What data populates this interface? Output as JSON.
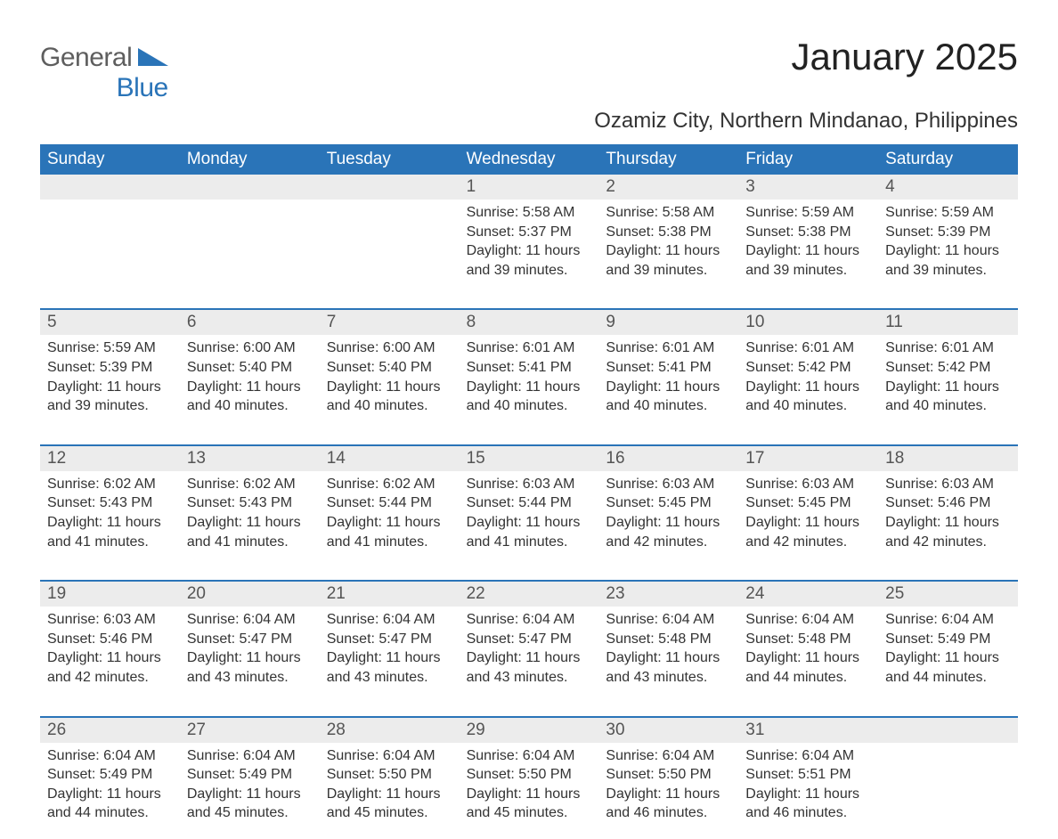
{
  "logo": {
    "top": "General",
    "bottom": "Blue",
    "mark_color": "#2a74b8",
    "text_gray": "#5e5e5e"
  },
  "title": "January 2025",
  "location": "Ozamiz City, Northern Mindanao, Philippines",
  "colors": {
    "header_bg": "#2a74b8",
    "header_text": "#ffffff",
    "daynum_bg": "#ececec",
    "body_text": "#333333",
    "background": "#ffffff",
    "week_border": "#2a74b8"
  },
  "typography": {
    "title_fontsize": 42,
    "location_fontsize": 24,
    "weekday_fontsize": 19,
    "daynum_fontsize": 19,
    "body_fontsize": 16
  },
  "layout": {
    "columns": 7,
    "rows": 5
  },
  "weekdays": [
    "Sunday",
    "Monday",
    "Tuesday",
    "Wednesday",
    "Thursday",
    "Friday",
    "Saturday"
  ],
  "weeks": [
    {
      "nums": [
        "",
        "",
        "",
        "1",
        "2",
        "3",
        "4"
      ],
      "cells": [
        {
          "sunrise": "",
          "sunset": "",
          "daylight": ""
        },
        {
          "sunrise": "",
          "sunset": "",
          "daylight": ""
        },
        {
          "sunrise": "",
          "sunset": "",
          "daylight": ""
        },
        {
          "sunrise": "Sunrise: 5:58 AM",
          "sunset": "Sunset: 5:37 PM",
          "daylight": "Daylight: 11 hours and 39 minutes."
        },
        {
          "sunrise": "Sunrise: 5:58 AM",
          "sunset": "Sunset: 5:38 PM",
          "daylight": "Daylight: 11 hours and 39 minutes."
        },
        {
          "sunrise": "Sunrise: 5:59 AM",
          "sunset": "Sunset: 5:38 PM",
          "daylight": "Daylight: 11 hours and 39 minutes."
        },
        {
          "sunrise": "Sunrise: 5:59 AM",
          "sunset": "Sunset: 5:39 PM",
          "daylight": "Daylight: 11 hours and 39 minutes."
        }
      ]
    },
    {
      "nums": [
        "5",
        "6",
        "7",
        "8",
        "9",
        "10",
        "11"
      ],
      "cells": [
        {
          "sunrise": "Sunrise: 5:59 AM",
          "sunset": "Sunset: 5:39 PM",
          "daylight": "Daylight: 11 hours and 39 minutes."
        },
        {
          "sunrise": "Sunrise: 6:00 AM",
          "sunset": "Sunset: 5:40 PM",
          "daylight": "Daylight: 11 hours and 40 minutes."
        },
        {
          "sunrise": "Sunrise: 6:00 AM",
          "sunset": "Sunset: 5:40 PM",
          "daylight": "Daylight: 11 hours and 40 minutes."
        },
        {
          "sunrise": "Sunrise: 6:01 AM",
          "sunset": "Sunset: 5:41 PM",
          "daylight": "Daylight: 11 hours and 40 minutes."
        },
        {
          "sunrise": "Sunrise: 6:01 AM",
          "sunset": "Sunset: 5:41 PM",
          "daylight": "Daylight: 11 hours and 40 minutes."
        },
        {
          "sunrise": "Sunrise: 6:01 AM",
          "sunset": "Sunset: 5:42 PM",
          "daylight": "Daylight: 11 hours and 40 minutes."
        },
        {
          "sunrise": "Sunrise: 6:01 AM",
          "sunset": "Sunset: 5:42 PM",
          "daylight": "Daylight: 11 hours and 40 minutes."
        }
      ]
    },
    {
      "nums": [
        "12",
        "13",
        "14",
        "15",
        "16",
        "17",
        "18"
      ],
      "cells": [
        {
          "sunrise": "Sunrise: 6:02 AM",
          "sunset": "Sunset: 5:43 PM",
          "daylight": "Daylight: 11 hours and 41 minutes."
        },
        {
          "sunrise": "Sunrise: 6:02 AM",
          "sunset": "Sunset: 5:43 PM",
          "daylight": "Daylight: 11 hours and 41 minutes."
        },
        {
          "sunrise": "Sunrise: 6:02 AM",
          "sunset": "Sunset: 5:44 PM",
          "daylight": "Daylight: 11 hours and 41 minutes."
        },
        {
          "sunrise": "Sunrise: 6:03 AM",
          "sunset": "Sunset: 5:44 PM",
          "daylight": "Daylight: 11 hours and 41 minutes."
        },
        {
          "sunrise": "Sunrise: 6:03 AM",
          "sunset": "Sunset: 5:45 PM",
          "daylight": "Daylight: 11 hours and 42 minutes."
        },
        {
          "sunrise": "Sunrise: 6:03 AM",
          "sunset": "Sunset: 5:45 PM",
          "daylight": "Daylight: 11 hours and 42 minutes."
        },
        {
          "sunrise": "Sunrise: 6:03 AM",
          "sunset": "Sunset: 5:46 PM",
          "daylight": "Daylight: 11 hours and 42 minutes."
        }
      ]
    },
    {
      "nums": [
        "19",
        "20",
        "21",
        "22",
        "23",
        "24",
        "25"
      ],
      "cells": [
        {
          "sunrise": "Sunrise: 6:03 AM",
          "sunset": "Sunset: 5:46 PM",
          "daylight": "Daylight: 11 hours and 42 minutes."
        },
        {
          "sunrise": "Sunrise: 6:04 AM",
          "sunset": "Sunset: 5:47 PM",
          "daylight": "Daylight: 11 hours and 43 minutes."
        },
        {
          "sunrise": "Sunrise: 6:04 AM",
          "sunset": "Sunset: 5:47 PM",
          "daylight": "Daylight: 11 hours and 43 minutes."
        },
        {
          "sunrise": "Sunrise: 6:04 AM",
          "sunset": "Sunset: 5:47 PM",
          "daylight": "Daylight: 11 hours and 43 minutes."
        },
        {
          "sunrise": "Sunrise: 6:04 AM",
          "sunset": "Sunset: 5:48 PM",
          "daylight": "Daylight: 11 hours and 43 minutes."
        },
        {
          "sunrise": "Sunrise: 6:04 AM",
          "sunset": "Sunset: 5:48 PM",
          "daylight": "Daylight: 11 hours and 44 minutes."
        },
        {
          "sunrise": "Sunrise: 6:04 AM",
          "sunset": "Sunset: 5:49 PM",
          "daylight": "Daylight: 11 hours and 44 minutes."
        }
      ]
    },
    {
      "nums": [
        "26",
        "27",
        "28",
        "29",
        "30",
        "31",
        ""
      ],
      "cells": [
        {
          "sunrise": "Sunrise: 6:04 AM",
          "sunset": "Sunset: 5:49 PM",
          "daylight": "Daylight: 11 hours and 44 minutes."
        },
        {
          "sunrise": "Sunrise: 6:04 AM",
          "sunset": "Sunset: 5:49 PM",
          "daylight": "Daylight: 11 hours and 45 minutes."
        },
        {
          "sunrise": "Sunrise: 6:04 AM",
          "sunset": "Sunset: 5:50 PM",
          "daylight": "Daylight: 11 hours and 45 minutes."
        },
        {
          "sunrise": "Sunrise: 6:04 AM",
          "sunset": "Sunset: 5:50 PM",
          "daylight": "Daylight: 11 hours and 45 minutes."
        },
        {
          "sunrise": "Sunrise: 6:04 AM",
          "sunset": "Sunset: 5:50 PM",
          "daylight": "Daylight: 11 hours and 46 minutes."
        },
        {
          "sunrise": "Sunrise: 6:04 AM",
          "sunset": "Sunset: 5:51 PM",
          "daylight": "Daylight: 11 hours and 46 minutes."
        },
        {
          "sunrise": "",
          "sunset": "",
          "daylight": ""
        }
      ]
    }
  ]
}
